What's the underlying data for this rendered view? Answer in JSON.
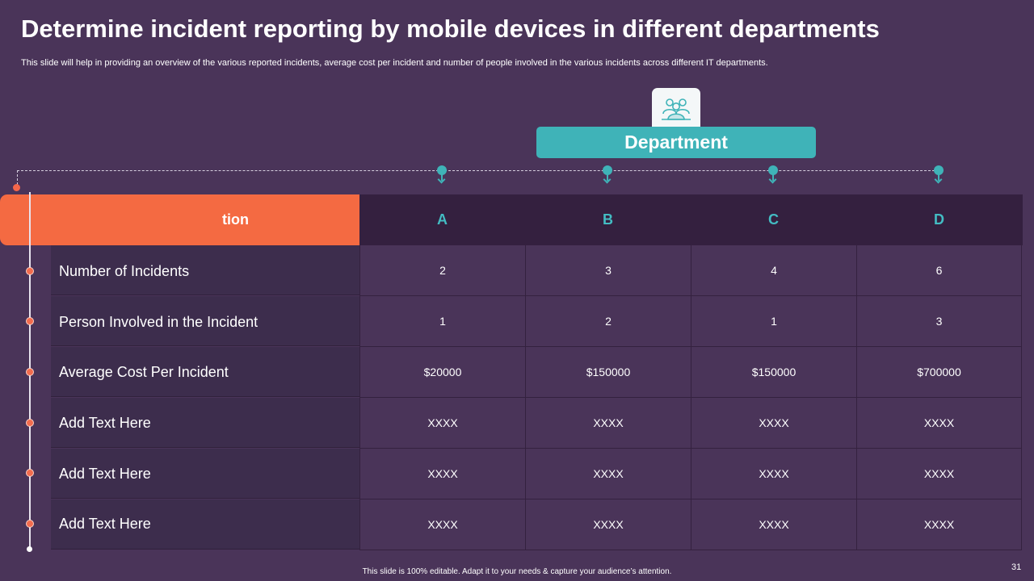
{
  "title": "Determine incident reporting by mobile devices in different departments",
  "subtitle": "This slide will help in providing an overview  of the various reported incidents, average cost per incident and  number of people involved in the various incidents across different IT departments.",
  "department": {
    "label": "Department",
    "icon": "people-group-icon"
  },
  "table": {
    "first_header": "tion",
    "columns": [
      "A",
      "B",
      "C",
      "D"
    ],
    "rows": [
      {
        "label": "Number of Incidents",
        "values": [
          "2",
          "3",
          "4",
          "6"
        ]
      },
      {
        "label": "Person Involved in the Incident",
        "values": [
          "1",
          "2",
          "1",
          "3"
        ]
      },
      {
        "label": "Average Cost Per Incident",
        "values": [
          "$20000",
          "$150000",
          "$150000",
          "$700000"
        ]
      },
      {
        "label": "Add Text Here",
        "values": [
          "XXXX",
          "XXXX",
          "XXXX",
          "XXXX"
        ]
      },
      {
        "label": "Add Text Here",
        "values": [
          "XXXX",
          "XXXX",
          "XXXX",
          "XXXX"
        ]
      },
      {
        "label": "Add Text Here",
        "values": [
          "XXXX",
          "XXXX",
          "XXXX",
          "XXXX"
        ]
      }
    ]
  },
  "footer": "This slide is 100% editable. Adapt it to your needs & capture your audience’s attention.",
  "page_number": "31",
  "colors": {
    "background": "#4a3459",
    "accent_teal": "#3fb3b8",
    "accent_orange": "#f46a42",
    "header_dark": "#34203f"
  }
}
